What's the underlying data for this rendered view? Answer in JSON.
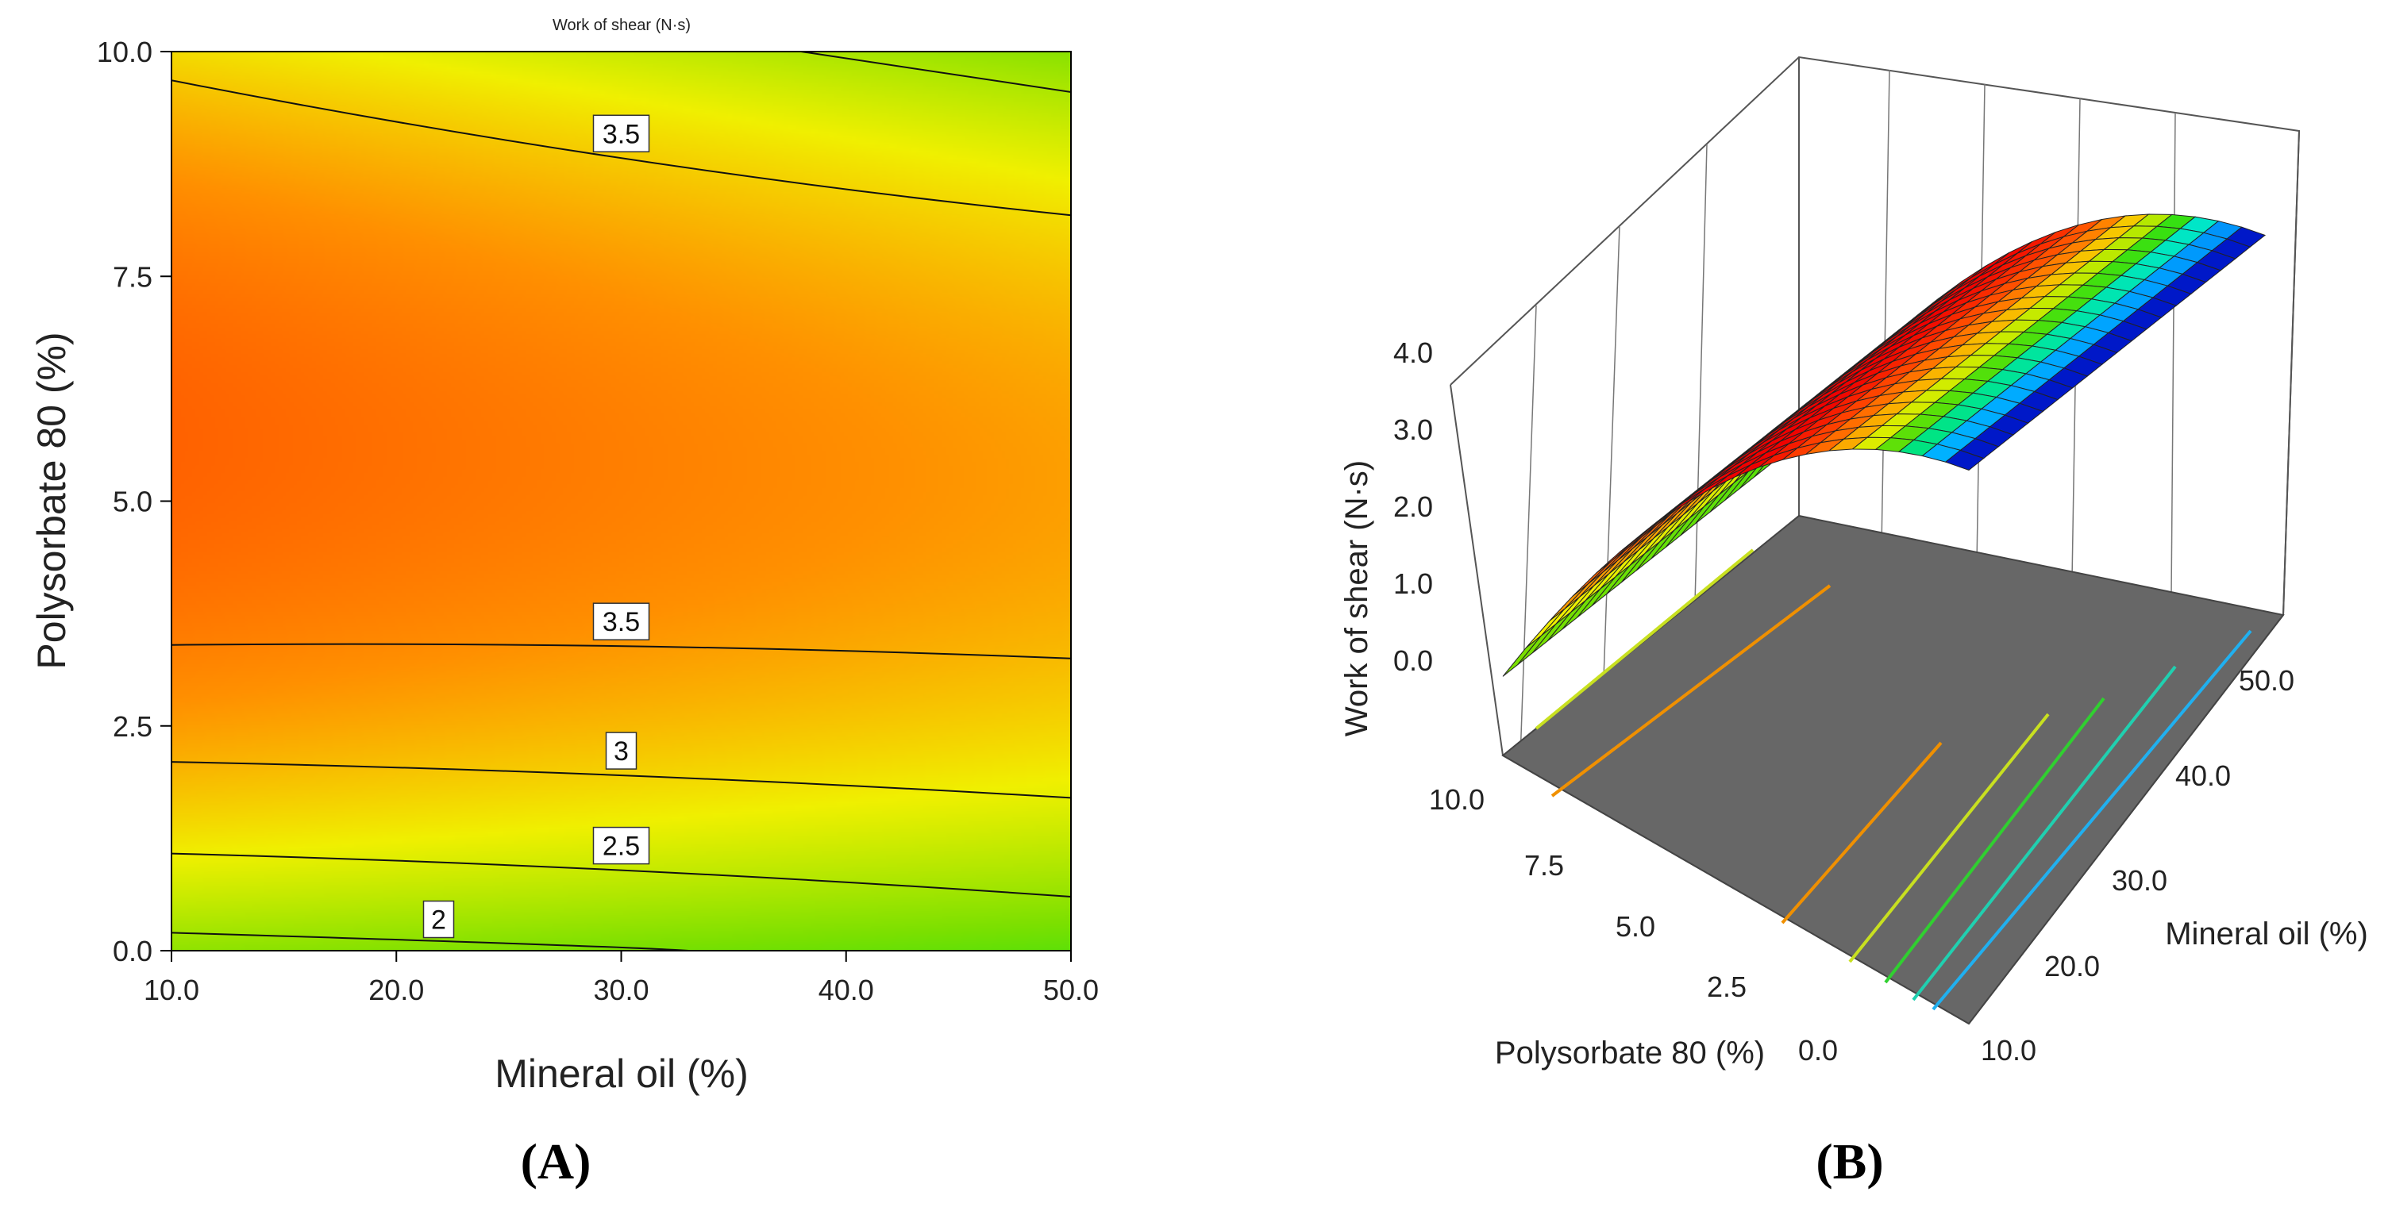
{
  "chart_data": [
    {
      "type": "heatmap",
      "panel_label": "(A)",
      "title": "Work of shear (N·s)",
      "xlabel": "Mineral oil (%)",
      "ylabel": "Polysorbate 80 (%)",
      "xlim": [
        10,
        50
      ],
      "ylim": [
        0,
        10
      ],
      "x_ticks": [
        "10.0",
        "20.0",
        "30.0",
        "40.0",
        "50.0"
      ],
      "y_ticks": [
        "0.0",
        "2.5",
        "5.0",
        "7.5",
        "10.0"
      ],
      "colorscale": [
        "#0018c8",
        "#00a0ff",
        "#00e8ff",
        "#00e020",
        "#7ce000",
        "#f0f000",
        "#ff9000",
        "#ff4800",
        "#f00000"
      ],
      "value_range": [
        1.8,
        4.1
      ],
      "contours": [
        {
          "label": "2",
          "level": 2.0,
          "points": [
            [
              10,
              0.2
            ],
            [
              30,
              0.05
            ],
            [
              33,
              0
            ]
          ]
        },
        {
          "label": "2.5",
          "level": 2.5,
          "points": [
            [
              10,
              1.08
            ],
            [
              30,
              0.95
            ],
            [
              50,
              0.6
            ]
          ]
        },
        {
          "label": "3",
          "level": 3.0,
          "points": [
            [
              10,
              2.1
            ],
            [
              30,
              2.0
            ],
            [
              50,
              1.7
            ]
          ]
        },
        {
          "label": "3.5",
          "level": 3.5,
          "points": [
            [
              10,
              3.4
            ],
            [
              30,
              3.45
            ],
            [
              50,
              3.25
            ]
          ]
        },
        {
          "label": "3.5",
          "level": 3.5,
          "points": [
            [
              10,
              9.68
            ],
            [
              30,
              8.7
            ],
            [
              50,
              8.18
            ]
          ]
        },
        {
          "label": "",
          "level": 3.0,
          "points": [
            [
              38,
              10
            ],
            [
              50,
              9.55
            ]
          ]
        }
      ]
    },
    {
      "type": "surface",
      "panel_label": "(B)",
      "xlabel": "Polysorbate 80 (%)",
      "ylabel": "Mineral oil (%)",
      "zlabel": "Work of shear (N·s)",
      "x_ticks": [
        "10.0",
        "7.5",
        "5.0",
        "2.5",
        "0.0"
      ],
      "y_ticks": [
        "10.0",
        "20.0",
        "30.0",
        "40.0",
        "50.0"
      ],
      "z_ticks": [
        "0.0",
        "1.0",
        "2.0",
        "3.0",
        "4.0"
      ],
      "xlim": [
        0,
        10
      ],
      "ylim": [
        10,
        50
      ],
      "zlim": [
        0,
        4
      ]
    }
  ]
}
